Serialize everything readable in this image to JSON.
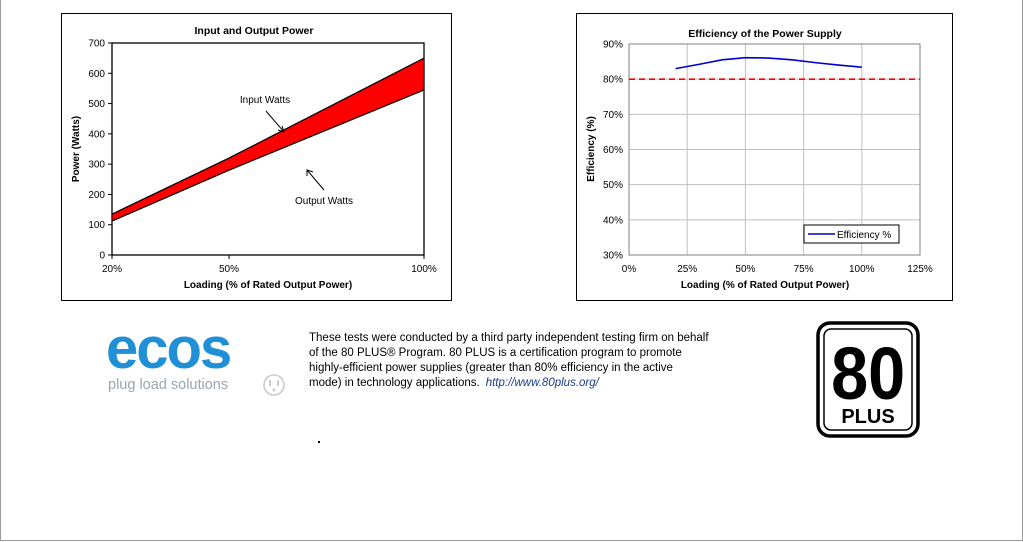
{
  "colors": {
    "band_fill": "#ff0000",
    "efficiency_line": "#0000cc",
    "threshold_line": "#ff0000",
    "grid": "#c0c0c0",
    "ecos_blue": "#1f8fd6",
    "ecos_gray": "#9aa6b0"
  },
  "chart_data": [
    {
      "type": "area",
      "title": "Input and Output Power",
      "xlabel": "Loading (% of Rated Output Power)",
      "ylabel": "Power (Watts)",
      "categories": [
        "20%",
        "50%",
        "100%"
      ],
      "x": [
        20,
        50,
        100
      ],
      "ylim": [
        0,
        700
      ],
      "yticks": [
        0,
        100,
        200,
        300,
        400,
        500,
        600,
        700
      ],
      "series": [
        {
          "name": "Input Watts",
          "values": [
            135,
            320,
            650
          ]
        },
        {
          "name": "Output Watts",
          "values": [
            112,
            280,
            545
          ]
        }
      ],
      "annotations": [
        "Input Watts",
        "Output Watts"
      ],
      "grid": false
    },
    {
      "type": "line",
      "title": "Efficiency of the Power Supply",
      "xlabel": "Loading (% of Rated Output Power)",
      "ylabel": "Efficiency (%)",
      "xticks": [
        "0%",
        "25%",
        "50%",
        "75%",
        "100%",
        "125%"
      ],
      "xlim": [
        0,
        125
      ],
      "ylim": [
        30,
        90
      ],
      "yticks": [
        "30%",
        "40%",
        "50%",
        "60%",
        "70%",
        "80%",
        "90%"
      ],
      "series": [
        {
          "name": "Efficiency %",
          "x": [
            20,
            30,
            40,
            50,
            60,
            70,
            80,
            90,
            100
          ],
          "values": [
            83.0,
            84.2,
            85.5,
            86.1,
            86.0,
            85.5,
            84.7,
            84.0,
            83.4
          ]
        }
      ],
      "reference_line": {
        "y": 80,
        "style": "dashed"
      },
      "legend": "bottom-right",
      "grid": true
    }
  ],
  "logo": {
    "name": "ecos",
    "tagline": "plug load solutions"
  },
  "caption": {
    "lines": [
      "These tests were conducted by a third party independent testing firm on behalf",
      "of the 80 PLUS® Program. 80 PLUS is a certification program to promote",
      "highly-efficient power supplies (greater than 80% efficiency in the active",
      "mode) in technology applications."
    ],
    "link": "http://www.80plus.org/"
  },
  "badge": {
    "number": "80",
    "word": "PLUS"
  }
}
